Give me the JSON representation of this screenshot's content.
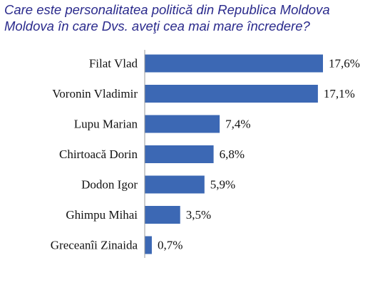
{
  "chart_data": {
    "type": "bar",
    "orientation": "horizontal",
    "title_lines": [
      "Care este personalitatea politică din Republica Moldova",
      "Moldova în care Dvs. aveţi cea mai mare încredere?"
    ],
    "categories": [
      "Filat Vlad",
      "Voronin Vladimir",
      "Lupu Marian",
      "Chirtoacă Dorin",
      "Dodon Igor",
      "Ghimpu Mihai",
      "Greceanîi Zinaida"
    ],
    "values": [
      17.6,
      17.1,
      7.4,
      6.8,
      5.9,
      3.5,
      0.7
    ],
    "value_labels": [
      "17,6%",
      "17,1%",
      "7,4%",
      "6,8%",
      "5,9%",
      "3,5%",
      "0,7%"
    ],
    "xlim": [
      0,
      17.6
    ],
    "grid": false,
    "legend": "none",
    "colors": {
      "bar": "#3c68b4",
      "axis": "#9a9a9a",
      "title": "#2a2a8c"
    }
  }
}
